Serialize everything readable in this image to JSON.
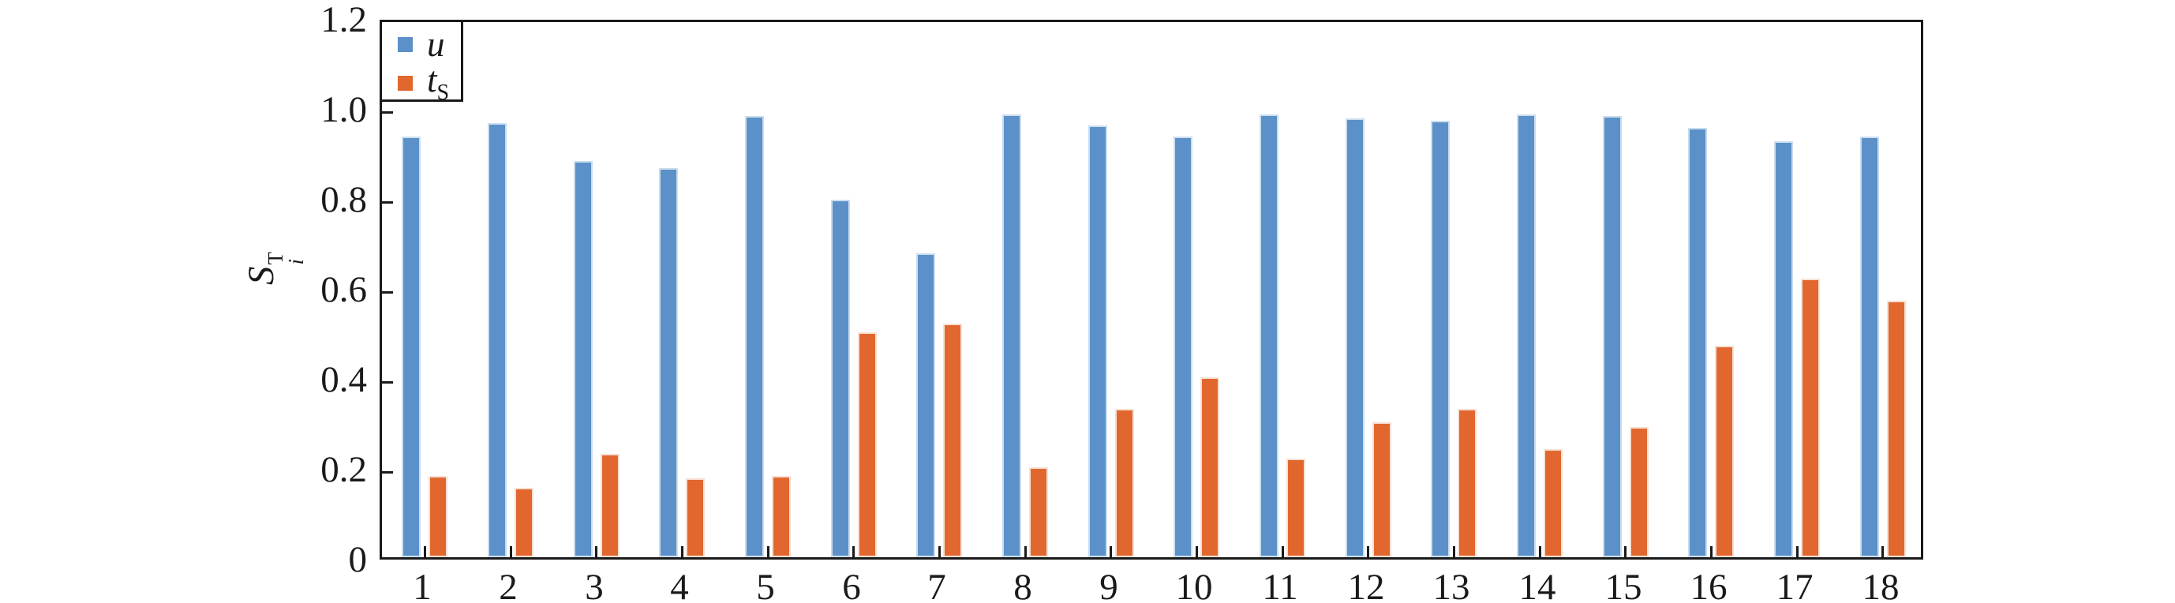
{
  "chart_data": {
    "type": "bar",
    "title": "",
    "xlabel": "",
    "ylabel": "S_i^T",
    "ylabel_parts": {
      "base": "S",
      "sup": "T",
      "sub": "i"
    },
    "ylim": [
      0,
      1.2
    ],
    "grid": false,
    "tick_direction": "in",
    "legend_position": "top-left",
    "axis_color": "#1a1a1a",
    "background_color": "#ffffff",
    "categories": [
      "1",
      "2",
      "3",
      "4",
      "5",
      "6",
      "7",
      "8",
      "9",
      "10",
      "11",
      "12",
      "13",
      "14",
      "15",
      "16",
      "17",
      "18"
    ],
    "yticks": [
      {
        "value": 0,
        "label": "0"
      },
      {
        "value": 0.2,
        "label": "0.2"
      },
      {
        "value": 0.4,
        "label": "0.4"
      },
      {
        "value": 0.6,
        "label": "0.6"
      },
      {
        "value": 0.8,
        "label": "0.8"
      },
      {
        "value": 1.0,
        "label": "1.0"
      },
      {
        "value": 1.2,
        "label": "1.2"
      }
    ],
    "series": [
      {
        "name": "u",
        "color": "#5B91C8",
        "edge_color": "#CADDEF",
        "values": [
          0.935,
          0.965,
          0.88,
          0.865,
          0.98,
          0.795,
          0.675,
          0.985,
          0.96,
          0.935,
          0.985,
          0.975,
          0.97,
          0.985,
          0.98,
          0.955,
          0.925,
          0.935
        ]
      },
      {
        "name": "t_S",
        "color": "#E1672F",
        "edge_color": "#F7E0D2",
        "values": [
          0.18,
          0.155,
          0.23,
          0.175,
          0.18,
          0.5,
          0.52,
          0.2,
          0.33,
          0.4,
          0.22,
          0.3,
          0.33,
          0.24,
          0.29,
          0.47,
          0.62,
          0.57
        ]
      }
    ],
    "legend_items": [
      {
        "base": "u",
        "sub": ""
      },
      {
        "base": "t",
        "sub": "S"
      }
    ]
  }
}
